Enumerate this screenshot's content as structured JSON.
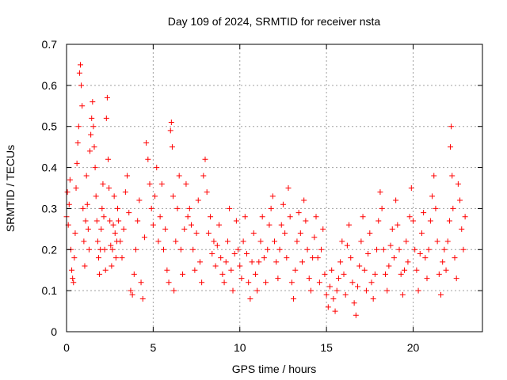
{
  "chart_data": {
    "type": "scatter",
    "title": "Day 109 of 2024, SRMTID for receiver nsta",
    "xlabel": "GPS time / hours",
    "ylabel": "SRMTID / TECUs",
    "xlim": [
      0,
      24
    ],
    "ylim": [
      0,
      0.7
    ],
    "xticks": [
      0,
      5,
      10,
      15,
      20
    ],
    "yticks": [
      0,
      0.1,
      0.2,
      0.3,
      0.4,
      0.5,
      0.6,
      0.7
    ],
    "grid": true,
    "marker": "+",
    "color": "#ff0000",
    "series": [
      {
        "name": "SRMTID",
        "points": [
          [
            0.0,
            0.28
          ],
          [
            0.05,
            0.34
          ],
          [
            0.1,
            0.26
          ],
          [
            0.15,
            0.31
          ],
          [
            0.2,
            0.37
          ],
          [
            0.25,
            0.2
          ],
          [
            0.3,
            0.15
          ],
          [
            0.35,
            0.13
          ],
          [
            0.4,
            0.12
          ],
          [
            0.45,
            0.18
          ],
          [
            0.5,
            0.24
          ],
          [
            0.55,
            0.35
          ],
          [
            0.6,
            0.41
          ],
          [
            0.65,
            0.46
          ],
          [
            0.7,
            0.5
          ],
          [
            0.75,
            0.63
          ],
          [
            0.8,
            0.65
          ],
          [
            0.85,
            0.6
          ],
          [
            0.9,
            0.55
          ],
          [
            0.95,
            0.3
          ],
          [
            1.0,
            0.22
          ],
          [
            1.05,
            0.16
          ],
          [
            1.1,
            0.27
          ],
          [
            1.15,
            0.38
          ],
          [
            1.2,
            0.31
          ],
          [
            1.25,
            0.25
          ],
          [
            1.3,
            0.2
          ],
          [
            1.35,
            0.44
          ],
          [
            1.4,
            0.48
          ],
          [
            1.45,
            0.52
          ],
          [
            1.5,
            0.56
          ],
          [
            1.55,
            0.5
          ],
          [
            1.6,
            0.45
          ],
          [
            1.65,
            0.4
          ],
          [
            1.7,
            0.33
          ],
          [
            1.75,
            0.27
          ],
          [
            1.8,
            0.22
          ],
          [
            1.85,
            0.18
          ],
          [
            1.9,
            0.14
          ],
          [
            1.95,
            0.2
          ],
          [
            2.0,
            0.25
          ],
          [
            2.05,
            0.3
          ],
          [
            2.1,
            0.36
          ],
          [
            2.15,
            0.28
          ],
          [
            2.2,
            0.2
          ],
          [
            2.25,
            0.15
          ],
          [
            2.3,
            0.52
          ],
          [
            2.35,
            0.57
          ],
          [
            2.4,
            0.42
          ],
          [
            2.45,
            0.35
          ],
          [
            2.5,
            0.27
          ],
          [
            2.55,
            0.21
          ],
          [
            2.6,
            0.16
          ],
          [
            2.65,
            0.2
          ],
          [
            2.7,
            0.26
          ],
          [
            2.75,
            0.33
          ],
          [
            2.8,
            0.24
          ],
          [
            2.85,
            0.18
          ],
          [
            2.9,
            0.22
          ],
          [
            2.95,
            0.3
          ],
          [
            3.0,
            0.27
          ],
          [
            3.1,
            0.22
          ],
          [
            3.2,
            0.18
          ],
          [
            3.3,
            0.25
          ],
          [
            3.4,
            0.34
          ],
          [
            3.5,
            0.38
          ],
          [
            3.6,
            0.29
          ],
          [
            3.7,
            0.1
          ],
          [
            3.8,
            0.09
          ],
          [
            3.9,
            0.14
          ],
          [
            4.0,
            0.2
          ],
          [
            4.1,
            0.27
          ],
          [
            4.2,
            0.32
          ],
          [
            4.3,
            0.12
          ],
          [
            4.4,
            0.08
          ],
          [
            4.5,
            0.23
          ],
          [
            4.6,
            0.46
          ],
          [
            4.7,
            0.42
          ],
          [
            4.8,
            0.36
          ],
          [
            4.9,
            0.3
          ],
          [
            5.0,
            0.26
          ],
          [
            5.1,
            0.33
          ],
          [
            5.2,
            0.4
          ],
          [
            5.3,
            0.22
          ],
          [
            5.4,
            0.28
          ],
          [
            5.5,
            0.36
          ],
          [
            5.6,
            0.2
          ],
          [
            5.7,
            0.25
          ],
          [
            5.8,
            0.15
          ],
          [
            5.9,
            0.12
          ],
          [
            6.0,
            0.49
          ],
          [
            6.05,
            0.51
          ],
          [
            6.1,
            0.45
          ],
          [
            6.15,
            0.33
          ],
          [
            6.2,
            0.1
          ],
          [
            6.3,
            0.22
          ],
          [
            6.4,
            0.3
          ],
          [
            6.5,
            0.38
          ],
          [
            6.6,
            0.2
          ],
          [
            6.7,
            0.14
          ],
          [
            6.8,
            0.25
          ],
          [
            6.9,
            0.36
          ],
          [
            7.0,
            0.28
          ],
          [
            7.1,
            0.3
          ],
          [
            7.2,
            0.26
          ],
          [
            7.3,
            0.2
          ],
          [
            7.4,
            0.15
          ],
          [
            7.5,
            0.24
          ],
          [
            7.6,
            0.32
          ],
          [
            7.7,
            0.17
          ],
          [
            7.8,
            0.12
          ],
          [
            7.9,
            0.38
          ],
          [
            8.0,
            0.42
          ],
          [
            8.1,
            0.34
          ],
          [
            8.2,
            0.24
          ],
          [
            8.3,
            0.28
          ],
          [
            8.4,
            0.19
          ],
          [
            8.5,
            0.22
          ],
          [
            8.6,
            0.16
          ],
          [
            8.7,
            0.21
          ],
          [
            8.8,
            0.26
          ],
          [
            8.9,
            0.18
          ],
          [
            9.0,
            0.14
          ],
          [
            9.1,
            0.12
          ],
          [
            9.2,
            0.17
          ],
          [
            9.3,
            0.22
          ],
          [
            9.4,
            0.3
          ],
          [
            9.5,
            0.15
          ],
          [
            9.6,
            0.1
          ],
          [
            9.7,
            0.19
          ],
          [
            9.8,
            0.27
          ],
          [
            9.9,
            0.2
          ],
          [
            10.0,
            0.16
          ],
          [
            10.1,
            0.13
          ],
          [
            10.2,
            0.22
          ],
          [
            10.3,
            0.28
          ],
          [
            10.4,
            0.19
          ],
          [
            10.5,
            0.12
          ],
          [
            10.6,
            0.08
          ],
          [
            10.7,
            0.17
          ],
          [
            10.8,
            0.24
          ],
          [
            10.9,
            0.14
          ],
          [
            11.0,
            0.1
          ],
          [
            11.1,
            0.17
          ],
          [
            11.2,
            0.22
          ],
          [
            11.3,
            0.28
          ],
          [
            11.4,
            0.18
          ],
          [
            11.5,
            0.12
          ],
          [
            11.6,
            0.2
          ],
          [
            11.7,
            0.26
          ],
          [
            11.8,
            0.3
          ],
          [
            11.9,
            0.33
          ],
          [
            12.0,
            0.22
          ],
          [
            12.1,
            0.17
          ],
          [
            12.2,
            0.13
          ],
          [
            12.3,
            0.2
          ],
          [
            12.4,
            0.26
          ],
          [
            12.5,
            0.31
          ],
          [
            12.6,
            0.24
          ],
          [
            12.7,
            0.18
          ],
          [
            12.8,
            0.35
          ],
          [
            12.9,
            0.28
          ],
          [
            13.0,
            0.12
          ],
          [
            13.1,
            0.08
          ],
          [
            13.2,
            0.15
          ],
          [
            13.3,
            0.22
          ],
          [
            13.4,
            0.29
          ],
          [
            13.5,
            0.24
          ],
          [
            13.6,
            0.17
          ],
          [
            13.7,
            0.32
          ],
          [
            13.8,
            0.27
          ],
          [
            13.9,
            0.2
          ],
          [
            14.0,
            0.13
          ],
          [
            14.1,
            0.1
          ],
          [
            14.2,
            0.18
          ],
          [
            14.3,
            0.23
          ],
          [
            14.4,
            0.28
          ],
          [
            14.5,
            0.18
          ],
          [
            14.6,
            0.12
          ],
          [
            14.7,
            0.2
          ],
          [
            14.8,
            0.25
          ],
          [
            14.9,
            0.14
          ],
          [
            15.0,
            0.09
          ],
          [
            15.1,
            0.06
          ],
          [
            15.2,
            0.11
          ],
          [
            15.3,
            0.15
          ],
          [
            15.4,
            0.08
          ],
          [
            15.5,
            0.05
          ],
          [
            15.6,
            0.1
          ],
          [
            15.7,
            0.13
          ],
          [
            15.8,
            0.17
          ],
          [
            15.9,
            0.22
          ],
          [
            16.0,
            0.14
          ],
          [
            16.1,
            0.09
          ],
          [
            16.2,
            0.21
          ],
          [
            16.3,
            0.26
          ],
          [
            16.4,
            0.18
          ],
          [
            16.5,
            0.12
          ],
          [
            16.6,
            0.07
          ],
          [
            16.7,
            0.04
          ],
          [
            16.8,
            0.11
          ],
          [
            16.9,
            0.16
          ],
          [
            17.0,
            0.22
          ],
          [
            17.1,
            0.28
          ],
          [
            17.2,
            0.15
          ],
          [
            17.3,
            0.1
          ],
          [
            17.4,
            0.19
          ],
          [
            17.5,
            0.24
          ],
          [
            17.6,
            0.12
          ],
          [
            17.7,
            0.08
          ],
          [
            17.8,
            0.14
          ],
          [
            17.9,
            0.2
          ],
          [
            18.0,
            0.27
          ],
          [
            18.1,
            0.34
          ],
          [
            18.2,
            0.3
          ],
          [
            18.3,
            0.2
          ],
          [
            18.4,
            0.14
          ],
          [
            18.5,
            0.1
          ],
          [
            18.6,
            0.16
          ],
          [
            18.7,
            0.21
          ],
          [
            18.8,
            0.25
          ],
          [
            18.9,
            0.18
          ],
          [
            19.0,
            0.32
          ],
          [
            19.1,
            0.26
          ],
          [
            19.2,
            0.2
          ],
          [
            19.3,
            0.14
          ],
          [
            19.4,
            0.09
          ],
          [
            19.5,
            0.15
          ],
          [
            19.6,
            0.22
          ],
          [
            19.7,
            0.17
          ],
          [
            19.8,
            0.28
          ],
          [
            19.9,
            0.35
          ],
          [
            20.0,
            0.27
          ],
          [
            20.1,
            0.2
          ],
          [
            20.2,
            0.15
          ],
          [
            20.3,
            0.1
          ],
          [
            20.4,
            0.19
          ],
          [
            20.5,
            0.24
          ],
          [
            20.6,
            0.29
          ],
          [
            20.7,
            0.18
          ],
          [
            20.8,
            0.13
          ],
          [
            20.9,
            0.2
          ],
          [
            21.0,
            0.27
          ],
          [
            21.1,
            0.33
          ],
          [
            21.2,
            0.38
          ],
          [
            21.3,
            0.3
          ],
          [
            21.4,
            0.22
          ],
          [
            21.5,
            0.14
          ],
          [
            21.6,
            0.09
          ],
          [
            21.7,
            0.17
          ],
          [
            21.8,
            0.2
          ],
          [
            21.9,
            0.15
          ],
          [
            22.0,
            0.22
          ],
          [
            22.1,
            0.27
          ],
          [
            22.15,
            0.45
          ],
          [
            22.2,
            0.5
          ],
          [
            22.25,
            0.38
          ],
          [
            22.3,
            0.3
          ],
          [
            22.4,
            0.18
          ],
          [
            22.5,
            0.13
          ],
          [
            22.6,
            0.36
          ],
          [
            22.7,
            0.32
          ],
          [
            22.8,
            0.25
          ],
          [
            22.9,
            0.2
          ],
          [
            23.0,
            0.28
          ]
        ]
      }
    ]
  }
}
